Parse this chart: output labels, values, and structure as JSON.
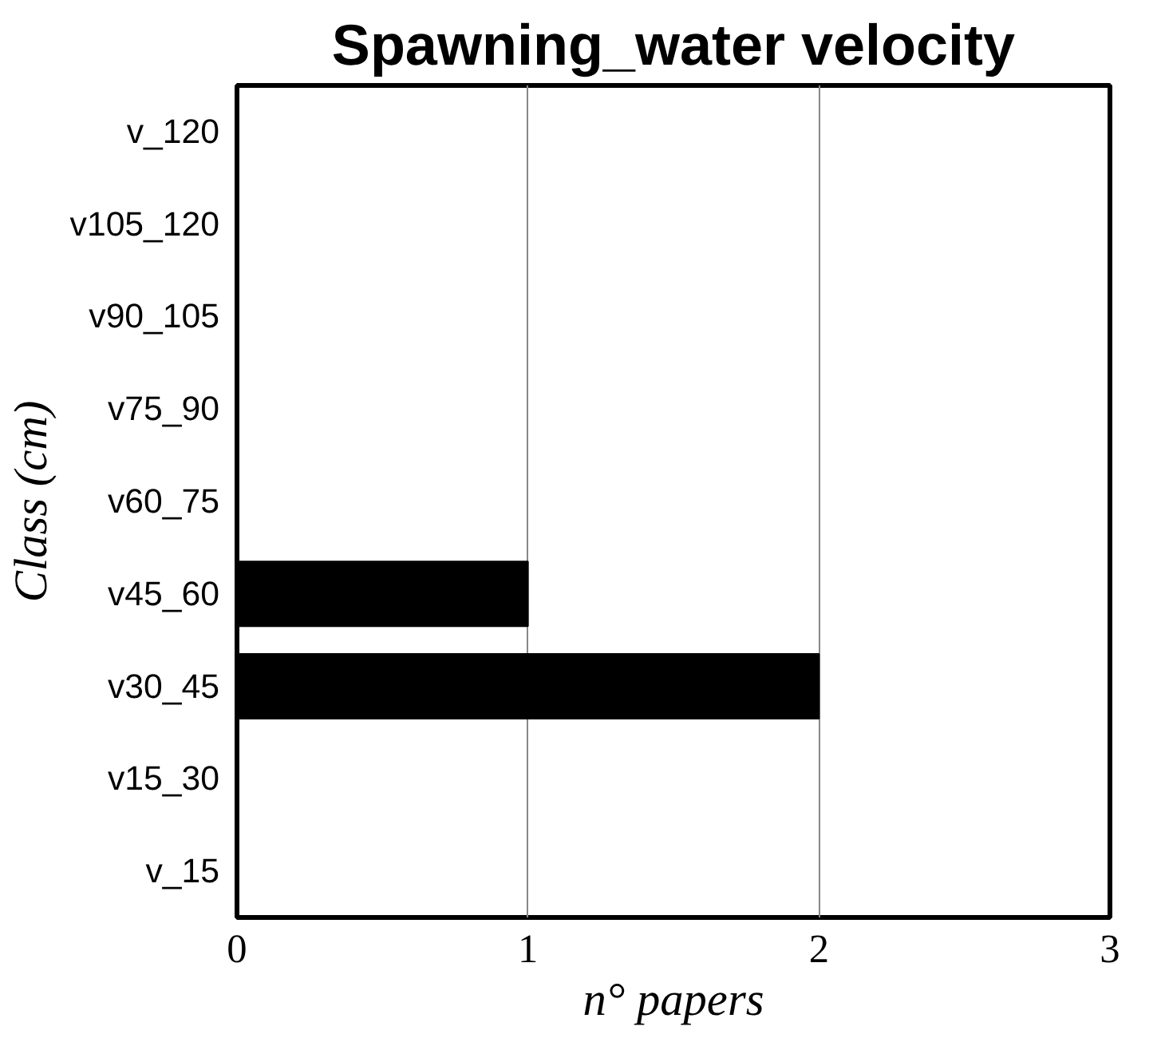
{
  "chart_data": {
    "type": "bar",
    "orientation": "horizontal",
    "title": "Spawning_water velocity",
    "xlabel": "n° papers",
    "ylabel": "Class (cm)",
    "categories": [
      "v_120",
      "v105_120",
      "v90_105",
      "v75_90",
      "v60_75",
      "v45_60",
      "v30_45",
      "v15_30",
      "v_15"
    ],
    "values": [
      0,
      0,
      0,
      0,
      0,
      1,
      2,
      0,
      0
    ],
    "color": "#000000",
    "xlim": [
      0,
      3
    ],
    "xticks": [
      0,
      1,
      2,
      3
    ],
    "grid": "x"
  }
}
